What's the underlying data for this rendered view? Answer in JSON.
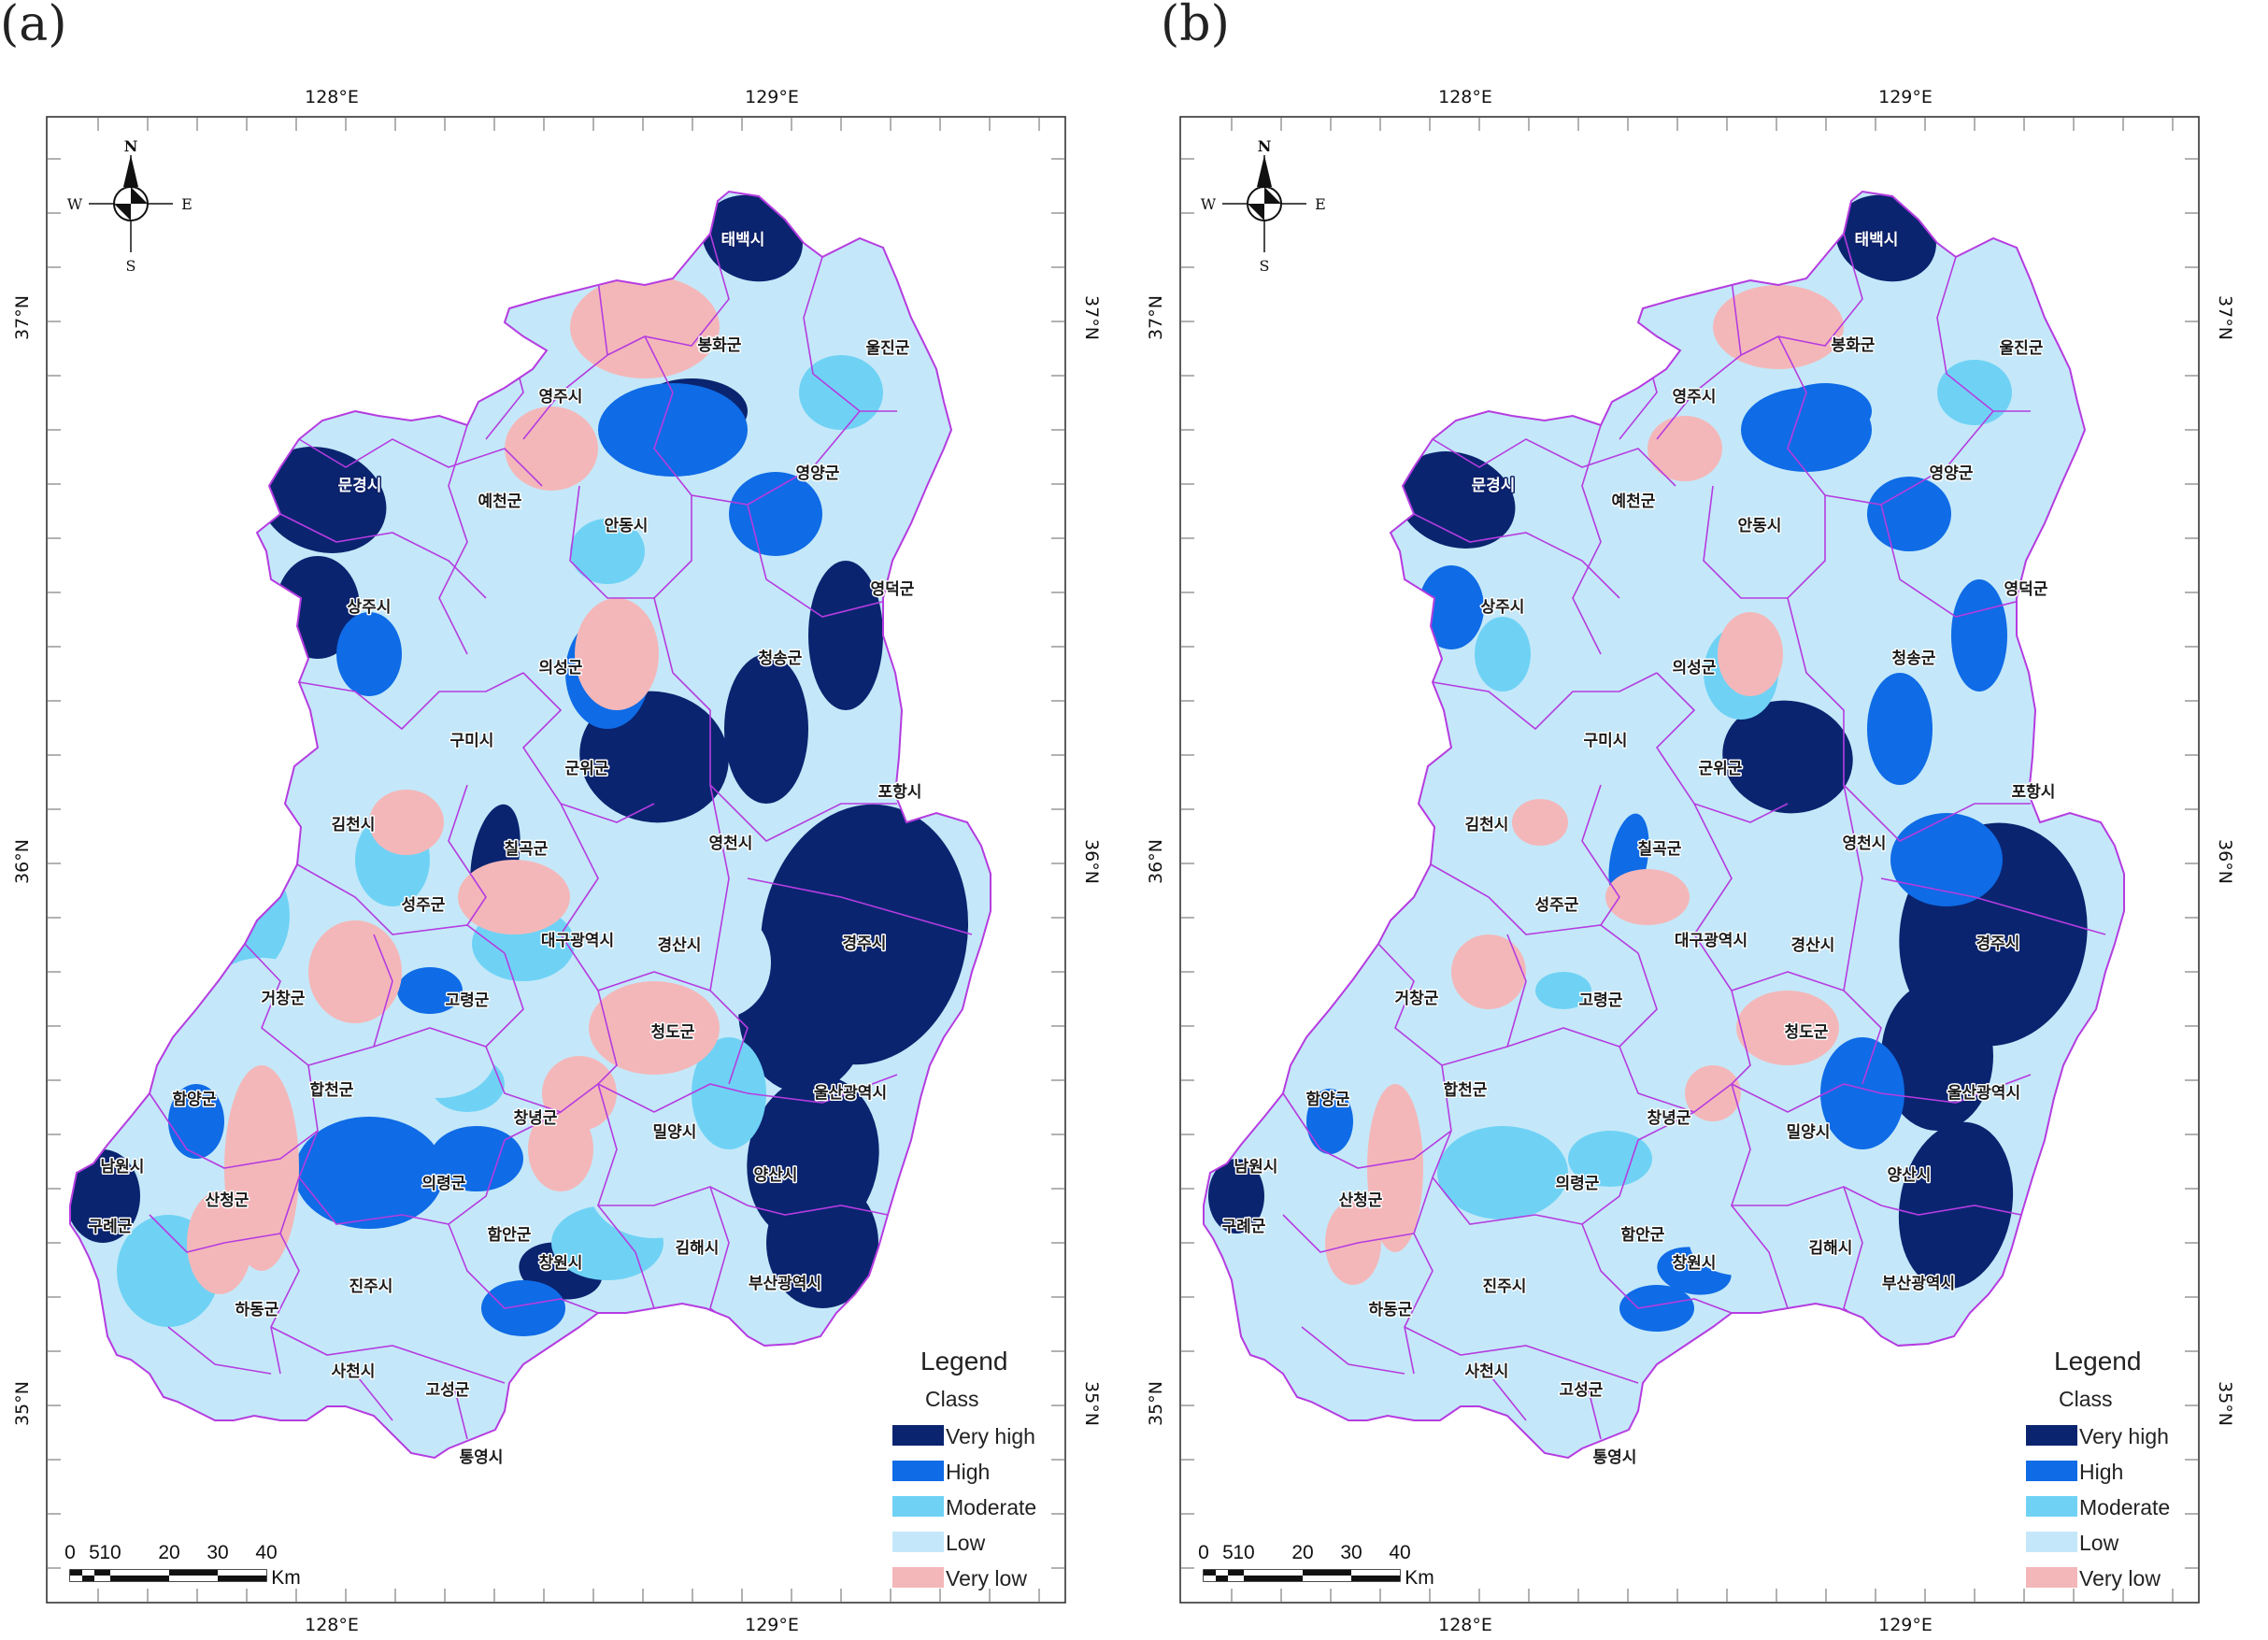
{
  "panels": [
    {
      "letter": "(a)",
      "variant": "a",
      "map": {
        "grid": {
          "lon_top": [
            "128°E",
            "129°E"
          ],
          "lon_bottom": [
            "128°E",
            "129°E"
          ],
          "lat_left": [
            "37°N",
            "36°N",
            "35°N"
          ],
          "lat_right": [
            "37°N",
            "36°N",
            "35°N"
          ]
        },
        "compass": {
          "n": "N",
          "s": "S",
          "e": "E",
          "w": "W"
        },
        "scale": {
          "ticks": [
            "0",
            "5",
            "10",
            "20",
            "30",
            "40"
          ],
          "unit": "Km"
        },
        "legend": {
          "title": "Legend",
          "subtitle": "Class",
          "items": [
            {
              "label": "Very high",
              "color": "#0a2470"
            },
            {
              "label": "High",
              "color": "#0f6be6"
            },
            {
              "label": "Moderate",
              "color": "#6fd2f5"
            },
            {
              "label": "Low",
              "color": "#c4e8f9"
            },
            {
              "label": "Very low",
              "color": "#f4b7b9"
            }
          ]
        },
        "regions": [
          "태백시",
          "봉화군",
          "울진군",
          "영주시",
          "문경시",
          "예천군",
          "안동시",
          "영양군",
          "상주시",
          "영덕군",
          "의성군",
          "청송군",
          "구미시",
          "군위군",
          "포항시",
          "김천시",
          "칠곡군",
          "영천시",
          "성주군",
          "대구광역시",
          "경산시",
          "경주시",
          "거창군",
          "고령군",
          "청도군",
          "함양군",
          "합천군",
          "울산광역시",
          "창녕군",
          "밀양시",
          "남원시",
          "의령군",
          "양산시",
          "산청군",
          "구례군",
          "함안군",
          "김해시",
          "창원시",
          "부산광역시",
          "진주시",
          "하동군",
          "사천시",
          "고성군",
          "통영시"
        ]
      }
    },
    {
      "letter": "(b)",
      "variant": "b",
      "map": {
        "grid": {
          "lon_top": [
            "128°E",
            "129°E"
          ],
          "lon_bottom": [
            "128°E",
            "129°E"
          ],
          "lat_left": [
            "37°N",
            "36°N",
            "35°N"
          ],
          "lat_right": [
            "37°N",
            "36°N",
            "35°N"
          ]
        },
        "compass": {
          "n": "N",
          "s": "S",
          "e": "E",
          "w": "W"
        },
        "scale": {
          "ticks": [
            "0",
            "5",
            "10",
            "20",
            "30",
            "40"
          ],
          "unit": "Km"
        },
        "legend": {
          "title": "Legend",
          "subtitle": "Class",
          "items": [
            {
              "label": "Very high",
              "color": "#0a2470"
            },
            {
              "label": "High",
              "color": "#0f6be6"
            },
            {
              "label": "Moderate",
              "color": "#6fd2f5"
            },
            {
              "label": "Low",
              "color": "#c4e8f9"
            },
            {
              "label": "Very low",
              "color": "#f4b7b9"
            }
          ]
        },
        "regions": [
          "태백시",
          "봉화군",
          "울진군",
          "영주시",
          "문경시",
          "예천군",
          "안동시",
          "영양군",
          "상주시",
          "영덕군",
          "의성군",
          "청송군",
          "구미시",
          "군위군",
          "포항시",
          "김천시",
          "칠곡군",
          "영천시",
          "성주군",
          "대구광역시",
          "경산시",
          "경주시",
          "거창군",
          "고령군",
          "청도군",
          "함양군",
          "합천군",
          "울산광역시",
          "창녕군",
          "밀양시",
          "남원시",
          "의령군",
          "양산시",
          "산청군",
          "구례군",
          "함안군",
          "김해시",
          "창원시",
          "부산광역시",
          "진주시",
          "하동군",
          "사천시",
          "고성군",
          "통영시"
        ]
      }
    }
  ]
}
